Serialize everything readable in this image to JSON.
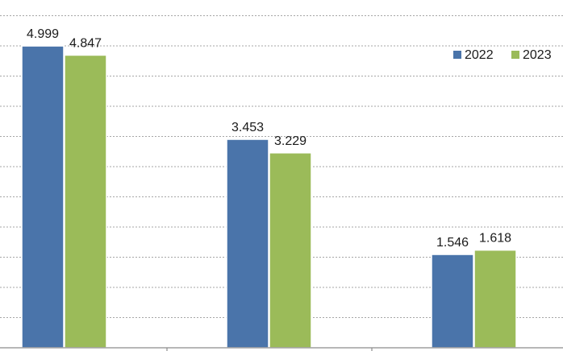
{
  "chart_data": {
    "type": "bar",
    "categories": [
      "",
      "",
      ""
    ],
    "series": [
      {
        "name": "2022",
        "values": [
          4.999,
          3.453,
          1.546
        ],
        "color": "#4a74aa"
      },
      {
        "name": "2023",
        "values": [
          4.847,
          3.229,
          1.618
        ],
        "color": "#9bbb59"
      }
    ],
    "data_labels": [
      [
        "4.999",
        "3.453",
        "1.546"
      ],
      [
        "4.847",
        "3.229",
        "1.618"
      ]
    ],
    "ylim": [
      0,
      5.8
    ],
    "grid": true,
    "legend_position": "top-right",
    "xlabel": "",
    "ylabel": ""
  }
}
